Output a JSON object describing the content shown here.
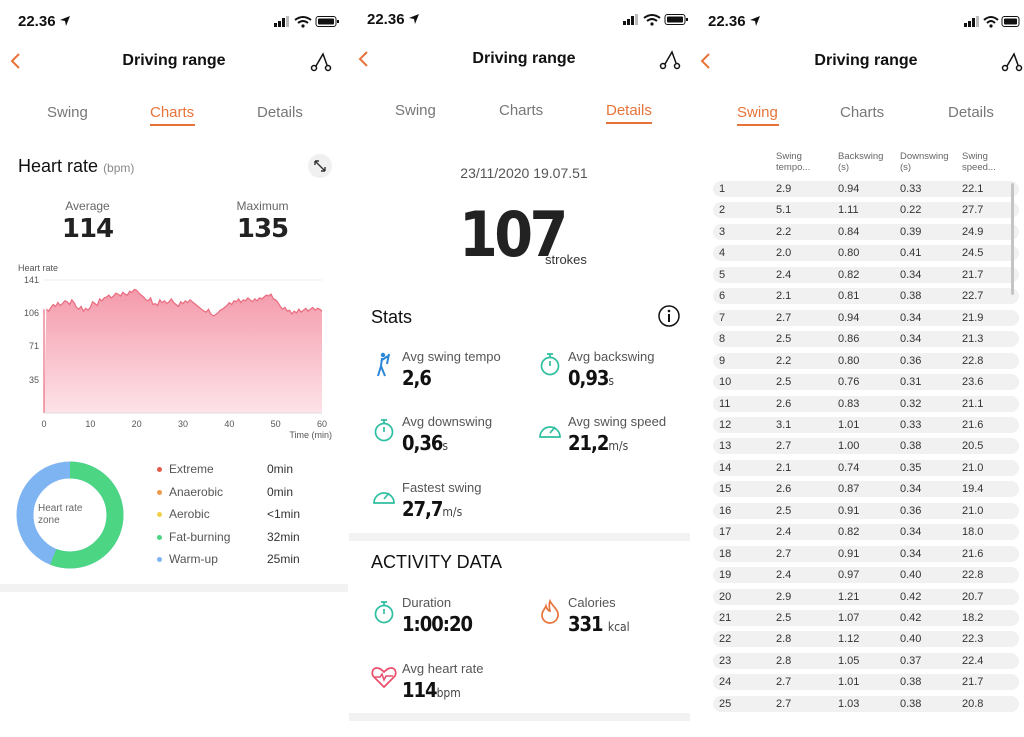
{
  "status_time": "22.36",
  "nav_title": "Driving range",
  "tabs": [
    "Swing",
    "Charts",
    "Details"
  ],
  "screen1": {
    "heart_rate_title": "Heart rate",
    "heart_rate_unit": "(bpm)",
    "average_label": "Average",
    "average_value": "114",
    "maximum_label": "Maximum",
    "maximum_value": "135",
    "chart_data": {
      "type": "area",
      "ylabel": "Heart rate",
      "xlabel": "Time (min)",
      "yticks": [
        "141",
        "106",
        "71",
        "35"
      ],
      "xticks": [
        "0",
        "10",
        "20",
        "30",
        "40",
        "50",
        "60"
      ],
      "xlim": [
        0,
        60
      ],
      "ylim": [
        0,
        141
      ],
      "x": [
        0,
        0.5,
        1,
        1.5,
        2,
        2.5,
        3,
        3.5,
        4,
        4.5,
        5,
        5.5,
        6,
        6.5,
        7,
        7.5,
        8,
        8.5,
        9,
        9.5,
        10,
        10.5,
        11,
        11.5,
        12,
        12.5,
        13,
        13.5,
        14,
        14.5,
        15,
        15.5,
        16,
        16.5,
        17,
        17.5,
        18,
        18.5,
        19,
        19.5,
        20,
        20.5,
        21,
        21.5,
        22,
        22.5,
        23,
        23.5,
        24,
        24.5,
        25,
        25.5,
        26,
        26.5,
        27,
        27.5,
        28,
        28.5,
        29,
        29.5,
        30,
        30.5,
        31,
        31.5,
        32,
        32.5,
        33,
        33.5,
        34,
        34.5,
        35,
        35.5,
        36,
        36.5,
        37,
        37.5,
        38,
        38.5,
        39,
        39.5,
        40,
        40.5,
        41,
        41.5,
        42,
        42.5,
        43,
        43.5,
        44,
        44.5,
        45,
        45.5,
        46,
        46.5,
        47,
        47.5,
        48,
        48.5,
        49,
        49.5,
        50,
        50.5,
        51,
        51.5,
        52,
        52.5,
        53,
        53.5,
        54,
        54.5,
        55,
        55.5,
        56,
        56.5,
        57,
        57.5,
        58,
        58.5,
        59,
        59.5,
        60
      ],
      "values": [
        0,
        110,
        108,
        112,
        115,
        113,
        117,
        114,
        116,
        119,
        118,
        115,
        120,
        117,
        112,
        110,
        113,
        108,
        111,
        109,
        112,
        118,
        116,
        114,
        121,
        119,
        122,
        123,
        125,
        122,
        124,
        127,
        126,
        124,
        128,
        126,
        125,
        129,
        128,
        131,
        130,
        127,
        125,
        123,
        120,
        119,
        122,
        115,
        116,
        114,
        120,
        117,
        119,
        116,
        118,
        121,
        117,
        115,
        113,
        118,
        116,
        119,
        117,
        120,
        118,
        116,
        114,
        112,
        110,
        108,
        107,
        110,
        105,
        103,
        104,
        106,
        109,
        110,
        112,
        114,
        117,
        115,
        119,
        118,
        121,
        117,
        120,
        119,
        122,
        120,
        118,
        121,
        119,
        122,
        121,
        123,
        125,
        124,
        126,
        121,
        120,
        117,
        113,
        110,
        112,
        108,
        109,
        105,
        108,
        106,
        110,
        107,
        109,
        111,
        108,
        110,
        112,
        109,
        111,
        110,
        108
      ],
      "color": "#e96b7e"
    },
    "zone_title": "Heart rate zone",
    "zones": [
      {
        "label": "Extreme",
        "value": "0min",
        "color": "#e55b4b"
      },
      {
        "label": "Anaerobic",
        "value": "0min",
        "color": "#f1994a"
      },
      {
        "label": "Aerobic",
        "value": "<1min",
        "color": "#f2cf47"
      },
      {
        "label": "Fat-burning",
        "value": "32min",
        "color": "#4cd684"
      },
      {
        "label": "Warm-up",
        "value": "25min",
        "color": "#7fb4f2"
      }
    ],
    "zone_fractions": {
      "fat_burning": 0.56,
      "warm_up": 0.44
    }
  },
  "screen2": {
    "datetime": "23/11/2020 19.07.51",
    "strokes_value": "107",
    "strokes_label": "strokes",
    "stats_title": "Stats",
    "stats": [
      {
        "label": "Avg swing tempo",
        "value": "2,6",
        "unit": ""
      },
      {
        "label": "Avg backswing",
        "value": "0,93",
        "unit": "s"
      },
      {
        "label": "Avg downswing",
        "value": "0,36",
        "unit": "s"
      },
      {
        "label": "Avg swing speed",
        "value": "21,2",
        "unit": "m/s"
      },
      {
        "label": "Fastest swing",
        "value": "27,7",
        "unit": "m/s"
      }
    ],
    "activity_title": "ACTIVITY DATA",
    "activity": [
      {
        "label": "Duration",
        "value": "1:00:20",
        "unit": ""
      },
      {
        "label": "Calories",
        "value": "331",
        "unit": "kcal"
      },
      {
        "label": "Avg heart rate",
        "value": "114",
        "unit": "bpm"
      }
    ]
  },
  "screen3": {
    "headers": [
      [
        "Swing",
        "tempo..."
      ],
      [
        "Backswing",
        "(s)"
      ],
      [
        "Downswing",
        "(s)"
      ],
      [
        "Swing",
        "speed..."
      ]
    ],
    "rows": [
      [
        "1",
        "2.9",
        "0.94",
        "0.33",
        "22.1"
      ],
      [
        "2",
        "5.1",
        "1.11",
        "0.22",
        "27.7"
      ],
      [
        "3",
        "2.2",
        "0.84",
        "0.39",
        "24.9"
      ],
      [
        "4",
        "2.0",
        "0.80",
        "0.41",
        "24.5"
      ],
      [
        "5",
        "2.4",
        "0.82",
        "0.34",
        "21.7"
      ],
      [
        "6",
        "2.1",
        "0.81",
        "0.38",
        "22.7"
      ],
      [
        "7",
        "2.7",
        "0.94",
        "0.34",
        "21.9"
      ],
      [
        "8",
        "2.5",
        "0.86",
        "0.34",
        "21.3"
      ],
      [
        "9",
        "2.2",
        "0.80",
        "0.36",
        "22.8"
      ],
      [
        "10",
        "2.5",
        "0.76",
        "0.31",
        "23.6"
      ],
      [
        "11",
        "2.6",
        "0.83",
        "0.32",
        "21.1"
      ],
      [
        "12",
        "3.1",
        "1.01",
        "0.33",
        "21.6"
      ],
      [
        "13",
        "2.7",
        "1.00",
        "0.38",
        "20.5"
      ],
      [
        "14",
        "2.1",
        "0.74",
        "0.35",
        "21.0"
      ],
      [
        "15",
        "2.6",
        "0.87",
        "0.34",
        "19.4"
      ],
      [
        "16",
        "2.5",
        "0.91",
        "0.36",
        "21.0"
      ],
      [
        "17",
        "2.4",
        "0.82",
        "0.34",
        "18.0"
      ],
      [
        "18",
        "2.7",
        "0.91",
        "0.34",
        "21.6"
      ],
      [
        "19",
        "2.4",
        "0.97",
        "0.40",
        "22.8"
      ],
      [
        "20",
        "2.9",
        "1.21",
        "0.42",
        "20.7"
      ],
      [
        "21",
        "2.5",
        "1.07",
        "0.42",
        "18.2"
      ],
      [
        "22",
        "2.8",
        "1.12",
        "0.40",
        "22.3"
      ],
      [
        "23",
        "2.8",
        "1.05",
        "0.37",
        "22.4"
      ],
      [
        "24",
        "2.7",
        "1.01",
        "0.38",
        "21.7"
      ],
      [
        "25",
        "2.7",
        "1.03",
        "0.38",
        "20.8"
      ]
    ]
  },
  "colors": {
    "accent": "#e8733a",
    "stat_icon": "#2fbfa0",
    "chart_fill": "#f7b8c2"
  }
}
